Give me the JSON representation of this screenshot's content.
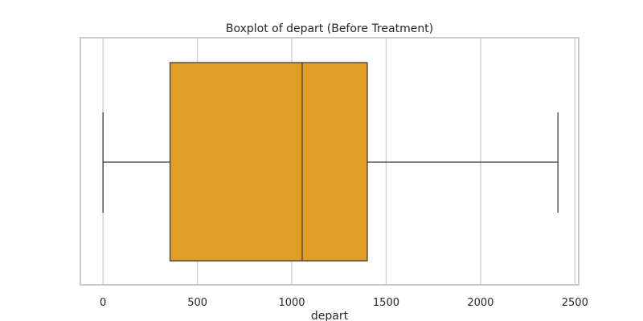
{
  "chart_data": {
    "type": "boxplot",
    "title": "Boxplot of depart (Before Treatment)",
    "xlabel": "depart",
    "ylabel": "",
    "orientation": "horizontal",
    "xlim": [
      -120,
      2520
    ],
    "xticks": [
      0,
      500,
      1000,
      1500,
      2000,
      2500
    ],
    "grid": true,
    "box": {
      "whisker_low": 0,
      "q1": 355,
      "median": 1055,
      "q3": 1400,
      "whisker_high": 2410
    },
    "colors": {
      "box_fill": "#e09f24",
      "line": "#3f3f3f",
      "grid": "#d3d3d3",
      "frame": "#cccccc"
    }
  }
}
